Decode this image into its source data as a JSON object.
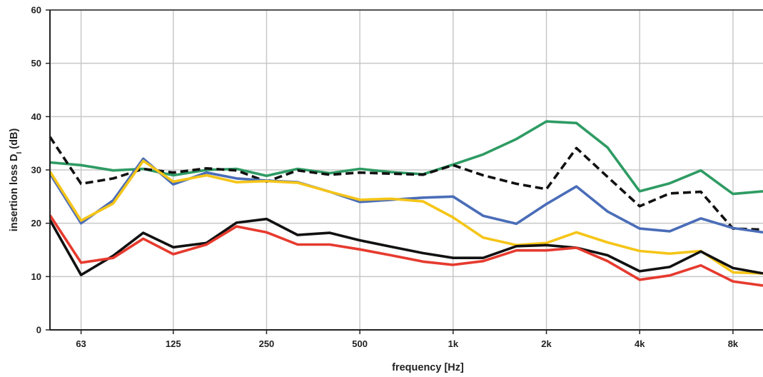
{
  "chart_data": {
    "type": "line",
    "xlabel": "frequency [Hz]",
    "ylabel_main": "insertion loss D",
    "ylabel_sub": "I",
    "ylabel_unit": "(dB)",
    "x_scale": "log (1/3-octave bands)",
    "xlim": [
      50,
      10000
    ],
    "ylim": [
      0,
      60
    ],
    "grid": true,
    "legend": "none",
    "x_ticks": [
      {
        "value": 63,
        "label": "63"
      },
      {
        "value": 125,
        "label": "125"
      },
      {
        "value": 250,
        "label": "250"
      },
      {
        "value": 500,
        "label": "500"
      },
      {
        "value": 1000,
        "label": "1k"
      },
      {
        "value": 2000,
        "label": "2k"
      },
      {
        "value": 4000,
        "label": "4k"
      },
      {
        "value": 8000,
        "label": "8k"
      }
    ],
    "y_ticks": [
      0,
      10,
      20,
      30,
      40,
      50,
      60
    ],
    "x": [
      50,
      63,
      80,
      100,
      125,
      160,
      200,
      250,
      315,
      400,
      500,
      630,
      800,
      1000,
      1250,
      1600,
      2000,
      2500,
      3150,
      4000,
      5000,
      6300,
      8000,
      10000
    ],
    "series": [
      {
        "color": "#2e9b63",
        "dash": false,
        "values": [
          31.4,
          30.9,
          29.9,
          30.2,
          29.0,
          30.0,
          30.2,
          28.9,
          30.2,
          29.4,
          30.2,
          29.6,
          29.2,
          31.0,
          32.9,
          35.8,
          39.1,
          38.8,
          34.2,
          26.0,
          27.5,
          29.9,
          25.5,
          26.0
        ]
      },
      {
        "color": "#111111",
        "dash": true,
        "values": [
          36.2,
          27.4,
          28.4,
          30.2,
          29.5,
          30.3,
          29.9,
          27.8,
          29.9,
          29.1,
          29.5,
          29.3,
          29.1,
          30.9,
          29.0,
          27.4,
          26.4,
          34.1,
          28.7,
          23.2,
          25.6,
          25.9,
          19.0,
          18.8
        ]
      },
      {
        "color": "#4a6db8",
        "dash": false,
        "values": [
          29.3,
          20.0,
          24.3,
          32.1,
          27.3,
          29.5,
          28.4,
          28.0,
          27.7,
          25.9,
          24.0,
          24.4,
          24.8,
          25.0,
          21.4,
          19.9,
          23.6,
          26.9,
          22.2,
          19.0,
          18.5,
          20.9,
          19.1,
          18.3
        ]
      },
      {
        "color": "#f5c518",
        "dash": false,
        "values": [
          29.7,
          20.5,
          23.7,
          31.7,
          27.8,
          29.0,
          27.7,
          27.9,
          27.6,
          25.9,
          24.4,
          24.6,
          24.1,
          21.1,
          17.3,
          15.9,
          16.3,
          18.3,
          16.4,
          14.8,
          14.3,
          14.8,
          10.8,
          10.6
        ]
      },
      {
        "color": "#111111",
        "dash": false,
        "values": [
          20.6,
          10.3,
          13.9,
          18.2,
          15.5,
          16.3,
          20.1,
          20.8,
          17.8,
          18.2,
          16.8,
          15.6,
          14.4,
          13.5,
          13.5,
          15.7,
          15.9,
          15.4,
          14.0,
          11.0,
          11.8,
          14.7,
          11.6,
          10.6
        ]
      },
      {
        "color": "#e63a2e",
        "dash": false,
        "values": [
          21.5,
          12.6,
          13.5,
          17.1,
          14.2,
          16.0,
          19.4,
          18.3,
          16.0,
          16.0,
          15.1,
          14.0,
          12.8,
          12.2,
          12.9,
          14.9,
          14.9,
          15.4,
          12.9,
          9.4,
          10.2,
          12.1,
          9.1,
          8.3
        ]
      }
    ]
  }
}
